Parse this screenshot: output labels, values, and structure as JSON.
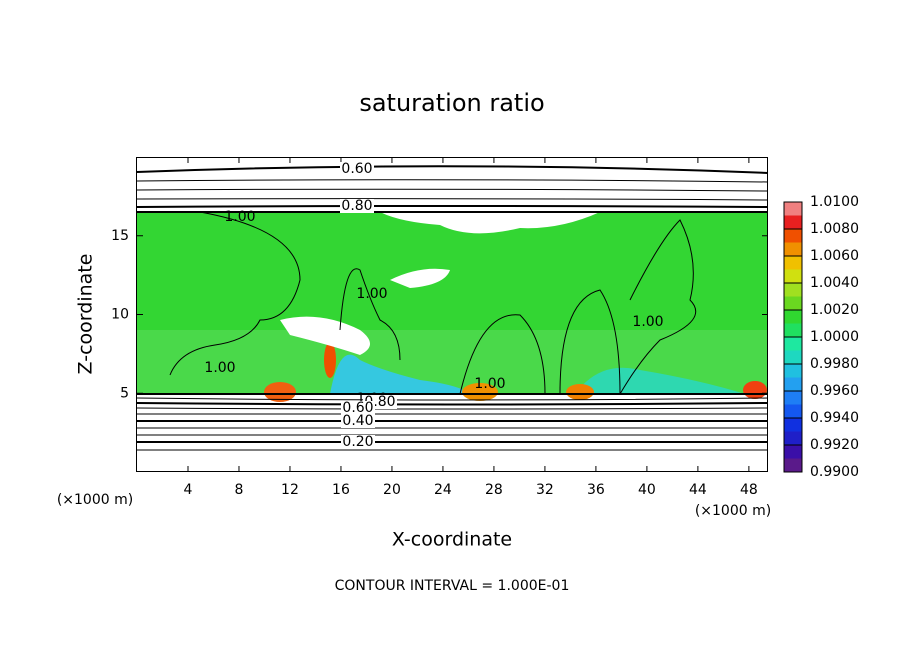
{
  "chart_data": {
    "type": "contour",
    "title": "saturation ratio",
    "x_label": "X-coordinate",
    "y_label": "Z-coordinate",
    "x_units": "(×1000 m)",
    "y_units": "(×1000 m)",
    "xlim": [
      0,
      49.5
    ],
    "xticks": [
      4,
      8,
      12,
      16,
      20,
      24,
      28,
      32,
      36,
      40,
      44,
      48
    ],
    "ylim": [
      0,
      20
    ],
    "yticks": [
      5,
      10,
      15
    ],
    "colorbar_lim": [
      0.99,
      1.01
    ],
    "colorbar_ticks": [
      {
        "value": 0.99,
        "label": "0.9900"
      },
      {
        "value": 0.992,
        "label": "0.9920"
      },
      {
        "value": 0.994,
        "label": "0.9940"
      },
      {
        "value": 0.996,
        "label": "0.9960"
      },
      {
        "value": 0.998,
        "label": "0.9980"
      },
      {
        "value": 1.0,
        "label": "1.0000"
      },
      {
        "value": 1.002,
        "label": "1.0020"
      },
      {
        "value": 1.004,
        "label": "1.0040"
      },
      {
        "value": 1.006,
        "label": "1.0060"
      },
      {
        "value": 1.008,
        "label": "1.0080"
      },
      {
        "value": 1.01,
        "label": "1.0100"
      }
    ],
    "colorbar_colors": [
      "#5a1a8a",
      "#3a0fa8",
      "#1f1fc8",
      "#1030e0",
      "#1458f0",
      "#1e7ef5",
      "#23a0f0",
      "#20c0e0",
      "#1ed8c0",
      "#1ee8a0",
      "#20e060",
      "#30d830",
      "#6ad820",
      "#a0e020",
      "#d0e010",
      "#f0c000",
      "#f09000",
      "#f05000",
      "#e82020",
      "#f08080"
    ],
    "contour_labels": [
      "0.60",
      "0.80",
      "1.00",
      "1.00",
      "1.00",
      "1.00",
      "1.00",
      "1.00",
      "0.80",
      "0.60",
      "0.40",
      "0.20"
    ],
    "footnote": "CONTOUR INTERVAL = 1.000E-01"
  }
}
